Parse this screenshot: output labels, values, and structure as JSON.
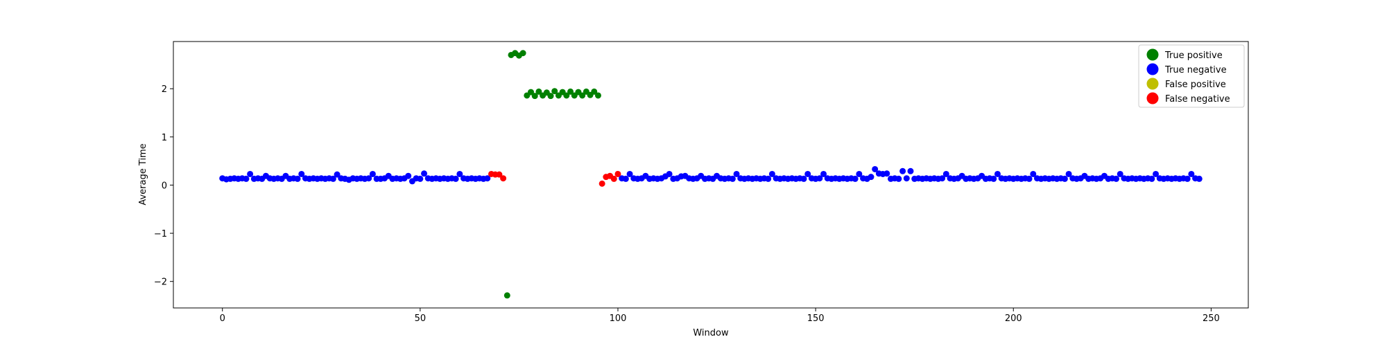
{
  "chart_data": {
    "type": "scatter",
    "title": "",
    "xlabel": "Window",
    "ylabel": "Average Time",
    "xlim": [
      -12.4,
      259.4
    ],
    "ylim": [
      -2.55,
      2.98
    ],
    "xticks": [
      0,
      50,
      100,
      150,
      200,
      250
    ],
    "yticks": [
      -2,
      -1,
      0,
      1,
      2
    ],
    "ytick_labels": [
      "−2",
      "−1",
      "0",
      "1",
      "2"
    ],
    "grid": false,
    "legend_position": "top-right",
    "series": [
      {
        "name": "True positive",
        "color": "#008000",
        "points": [
          [
            72,
            -2.29
          ],
          [
            73,
            2.7
          ],
          [
            74,
            2.74
          ],
          [
            75,
            2.69
          ],
          [
            76,
            2.74
          ],
          [
            77,
            1.86
          ],
          [
            78,
            1.93
          ],
          [
            79,
            1.85
          ],
          [
            80,
            1.94
          ],
          [
            81,
            1.86
          ],
          [
            82,
            1.92
          ],
          [
            83,
            1.85
          ],
          [
            84,
            1.95
          ],
          [
            85,
            1.86
          ],
          [
            86,
            1.93
          ],
          [
            87,
            1.86
          ],
          [
            88,
            1.94
          ],
          [
            89,
            1.86
          ],
          [
            90,
            1.93
          ],
          [
            91,
            1.86
          ],
          [
            92,
            1.94
          ],
          [
            93,
            1.87
          ],
          [
            94,
            1.94
          ],
          [
            95,
            1.86
          ]
        ]
      },
      {
        "name": "True negative",
        "color": "#0000ff",
        "points": [
          [
            0,
            0.14
          ],
          [
            1,
            0.12
          ],
          [
            2,
            0.13
          ],
          [
            3,
            0.14
          ],
          [
            4,
            0.13
          ],
          [
            5,
            0.14
          ],
          [
            6,
            0.13
          ],
          [
            7,
            0.23
          ],
          [
            8,
            0.13
          ],
          [
            9,
            0.14
          ],
          [
            10,
            0.13
          ],
          [
            11,
            0.19
          ],
          [
            12,
            0.14
          ],
          [
            13,
            0.13
          ],
          [
            14,
            0.14
          ],
          [
            15,
            0.13
          ],
          [
            16,
            0.19
          ],
          [
            17,
            0.13
          ],
          [
            18,
            0.14
          ],
          [
            19,
            0.13
          ],
          [
            20,
            0.23
          ],
          [
            21,
            0.14
          ],
          [
            22,
            0.13
          ],
          [
            23,
            0.14
          ],
          [
            24,
            0.13
          ],
          [
            25,
            0.14
          ],
          [
            26,
            0.13
          ],
          [
            27,
            0.14
          ],
          [
            28,
            0.13
          ],
          [
            29,
            0.22
          ],
          [
            30,
            0.14
          ],
          [
            31,
            0.13
          ],
          [
            32,
            0.11
          ],
          [
            33,
            0.14
          ],
          [
            34,
            0.13
          ],
          [
            35,
            0.14
          ],
          [
            36,
            0.13
          ],
          [
            37,
            0.14
          ],
          [
            38,
            0.23
          ],
          [
            39,
            0.13
          ],
          [
            40,
            0.13
          ],
          [
            41,
            0.14
          ],
          [
            42,
            0.19
          ],
          [
            43,
            0.13
          ],
          [
            44,
            0.14
          ],
          [
            45,
            0.13
          ],
          [
            46,
            0.14
          ],
          [
            47,
            0.19
          ],
          [
            48,
            0.08
          ],
          [
            49,
            0.14
          ],
          [
            50,
            0.13
          ],
          [
            51,
            0.24
          ],
          [
            52,
            0.14
          ],
          [
            53,
            0.13
          ],
          [
            54,
            0.14
          ],
          [
            55,
            0.13
          ],
          [
            56,
            0.14
          ],
          [
            57,
            0.13
          ],
          [
            58,
            0.14
          ],
          [
            59,
            0.13
          ],
          [
            60,
            0.23
          ],
          [
            61,
            0.14
          ],
          [
            62,
            0.13
          ],
          [
            63,
            0.14
          ],
          [
            64,
            0.13
          ],
          [
            65,
            0.14
          ],
          [
            66,
            0.13
          ],
          [
            67,
            0.14
          ],
          [
            101,
            0.14
          ],
          [
            102,
            0.13
          ],
          [
            103,
            0.23
          ],
          [
            104,
            0.14
          ],
          [
            105,
            0.13
          ],
          [
            106,
            0.14
          ],
          [
            107,
            0.19
          ],
          [
            108,
            0.13
          ],
          [
            109,
            0.14
          ],
          [
            110,
            0.13
          ],
          [
            111,
            0.14
          ],
          [
            112,
            0.18
          ],
          [
            113,
            0.23
          ],
          [
            114,
            0.13
          ],
          [
            115,
            0.14
          ],
          [
            116,
            0.18
          ],
          [
            117,
            0.19
          ],
          [
            118,
            0.14
          ],
          [
            119,
            0.13
          ],
          [
            120,
            0.14
          ],
          [
            121,
            0.19
          ],
          [
            122,
            0.13
          ],
          [
            123,
            0.14
          ],
          [
            124,
            0.13
          ],
          [
            125,
            0.19
          ],
          [
            126,
            0.14
          ],
          [
            127,
            0.13
          ],
          [
            128,
            0.14
          ],
          [
            129,
            0.13
          ],
          [
            130,
            0.23
          ],
          [
            131,
            0.14
          ],
          [
            132,
            0.13
          ],
          [
            133,
            0.14
          ],
          [
            134,
            0.13
          ],
          [
            135,
            0.14
          ],
          [
            136,
            0.13
          ],
          [
            137,
            0.14
          ],
          [
            138,
            0.13
          ],
          [
            139,
            0.23
          ],
          [
            140,
            0.14
          ],
          [
            141,
            0.13
          ],
          [
            142,
            0.14
          ],
          [
            143,
            0.13
          ],
          [
            144,
            0.14
          ],
          [
            145,
            0.13
          ],
          [
            146,
            0.14
          ],
          [
            147,
            0.13
          ],
          [
            148,
            0.23
          ],
          [
            149,
            0.14
          ],
          [
            150,
            0.13
          ],
          [
            151,
            0.14
          ],
          [
            152,
            0.23
          ],
          [
            153,
            0.14
          ],
          [
            154,
            0.13
          ],
          [
            155,
            0.14
          ],
          [
            156,
            0.13
          ],
          [
            157,
            0.14
          ],
          [
            158,
            0.13
          ],
          [
            159,
            0.14
          ],
          [
            160,
            0.13
          ],
          [
            161,
            0.23
          ],
          [
            162,
            0.14
          ],
          [
            163,
            0.13
          ],
          [
            164,
            0.17
          ],
          [
            165,
            0.33
          ],
          [
            166,
            0.24
          ],
          [
            167,
            0.23
          ],
          [
            168,
            0.24
          ],
          [
            169,
            0.13
          ],
          [
            170,
            0.14
          ],
          [
            171,
            0.13
          ],
          [
            172,
            0.29
          ],
          [
            173,
            0.14
          ],
          [
            174,
            0.29
          ],
          [
            175,
            0.13
          ],
          [
            176,
            0.14
          ],
          [
            177,
            0.13
          ],
          [
            178,
            0.14
          ],
          [
            179,
            0.13
          ],
          [
            180,
            0.14
          ],
          [
            181,
            0.13
          ],
          [
            182,
            0.14
          ],
          [
            183,
            0.23
          ],
          [
            184,
            0.14
          ],
          [
            185,
            0.13
          ],
          [
            186,
            0.14
          ],
          [
            187,
            0.19
          ],
          [
            188,
            0.13
          ],
          [
            189,
            0.14
          ],
          [
            190,
            0.13
          ],
          [
            191,
            0.14
          ],
          [
            192,
            0.19
          ],
          [
            193,
            0.13
          ],
          [
            194,
            0.14
          ],
          [
            195,
            0.13
          ],
          [
            196,
            0.23
          ],
          [
            197,
            0.14
          ],
          [
            198,
            0.13
          ],
          [
            199,
            0.14
          ],
          [
            200,
            0.13
          ],
          [
            201,
            0.14
          ],
          [
            202,
            0.13
          ],
          [
            203,
            0.14
          ],
          [
            204,
            0.13
          ],
          [
            205,
            0.23
          ],
          [
            206,
            0.14
          ],
          [
            207,
            0.13
          ],
          [
            208,
            0.14
          ],
          [
            209,
            0.13
          ],
          [
            210,
            0.14
          ],
          [
            211,
            0.13
          ],
          [
            212,
            0.14
          ],
          [
            213,
            0.13
          ],
          [
            214,
            0.23
          ],
          [
            215,
            0.14
          ],
          [
            216,
            0.13
          ],
          [
            217,
            0.14
          ],
          [
            218,
            0.19
          ],
          [
            219,
            0.13
          ],
          [
            220,
            0.14
          ],
          [
            221,
            0.13
          ],
          [
            222,
            0.14
          ],
          [
            223,
            0.19
          ],
          [
            224,
            0.13
          ],
          [
            225,
            0.14
          ],
          [
            226,
            0.13
          ],
          [
            227,
            0.23
          ],
          [
            228,
            0.14
          ],
          [
            229,
            0.13
          ],
          [
            230,
            0.14
          ],
          [
            231,
            0.13
          ],
          [
            232,
            0.14
          ],
          [
            233,
            0.13
          ],
          [
            234,
            0.14
          ],
          [
            235,
            0.13
          ],
          [
            236,
            0.23
          ],
          [
            237,
            0.14
          ],
          [
            238,
            0.13
          ],
          [
            239,
            0.14
          ],
          [
            240,
            0.13
          ],
          [
            241,
            0.14
          ],
          [
            242,
            0.13
          ],
          [
            243,
            0.14
          ],
          [
            244,
            0.13
          ],
          [
            245,
            0.23
          ],
          [
            246,
            0.14
          ],
          [
            247,
            0.13
          ]
        ]
      },
      {
        "name": "False positive",
        "color": "#bfbf00",
        "points": []
      },
      {
        "name": "False negative",
        "color": "#ff0000",
        "points": [
          [
            68,
            0.23
          ],
          [
            69,
            0.22
          ],
          [
            70,
            0.22
          ],
          [
            71,
            0.14
          ],
          [
            96,
            0.03
          ],
          [
            97,
            0.17
          ],
          [
            98,
            0.19
          ],
          [
            99,
            0.13
          ],
          [
            100,
            0.23
          ]
        ]
      }
    ]
  }
}
